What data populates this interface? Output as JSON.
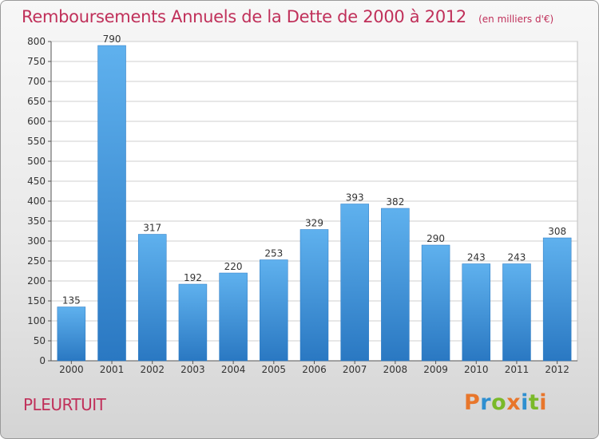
{
  "chart_data": {
    "type": "bar",
    "title": "Remboursements Annuels de la Dette de 2000 à 2012",
    "subtitle": "(en milliers d'€)",
    "xlabel": "",
    "ylabel": "",
    "categories": [
      "2000",
      "2001",
      "2002",
      "2003",
      "2004",
      "2005",
      "2006",
      "2007",
      "2008",
      "2009",
      "2010",
      "2011",
      "2012"
    ],
    "values": [
      135,
      790,
      317,
      192,
      220,
      253,
      329,
      393,
      382,
      290,
      243,
      243,
      308
    ],
    "ylim": [
      0,
      800
    ],
    "yticks": [
      0,
      50,
      100,
      150,
      200,
      250,
      300,
      350,
      400,
      450,
      500,
      550,
      600,
      650,
      700,
      750,
      800
    ],
    "grid": true,
    "bar_color": "#3f8fd2",
    "data_labels": true
  },
  "footer": {
    "commune": "PLEURTUIT",
    "logo_letters": [
      {
        "ch": "P",
        "color": "#e8762b"
      },
      {
        "ch": "r",
        "color": "#2f8fd0"
      },
      {
        "ch": "o",
        "color": "#7ab929"
      },
      {
        "ch": "x",
        "color": "#e8762b"
      },
      {
        "ch": "i",
        "color": "#2f8fd0"
      },
      {
        "ch": "t",
        "color": "#7ab929"
      },
      {
        "ch": "i",
        "color": "#e8762b"
      }
    ]
  }
}
